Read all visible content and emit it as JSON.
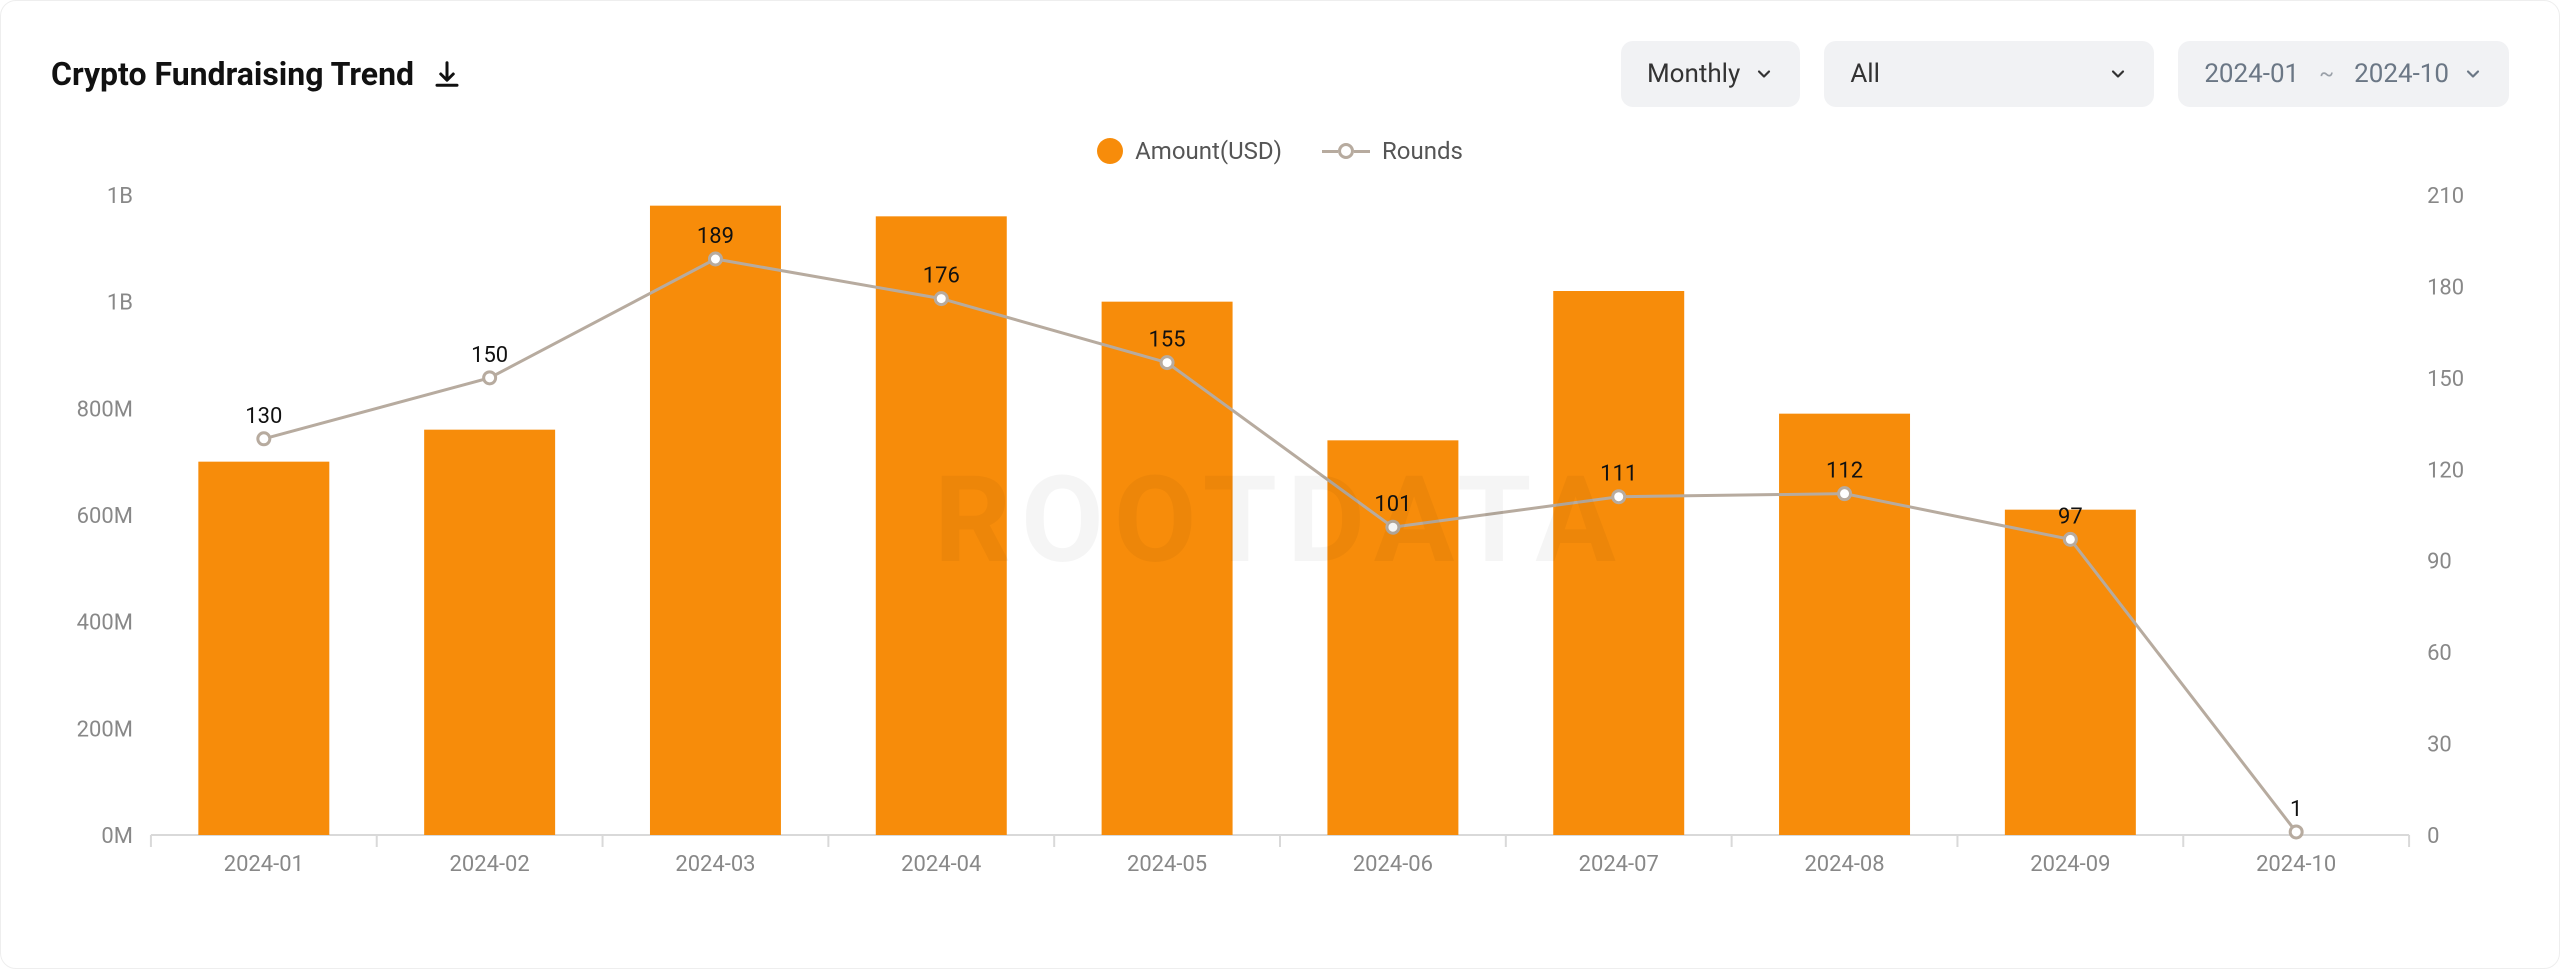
{
  "title": "Crypto Fundraising Trend",
  "controls": {
    "period_label": "Monthly",
    "category_label": "All",
    "range_from": "2024-01",
    "range_to": "2024-10",
    "range_sep": "~"
  },
  "legend": {
    "bar_label": "Amount(USD)",
    "line_label": "Rounds"
  },
  "chart": {
    "type": "bar+line",
    "categories": [
      "2024-01",
      "2024-02",
      "2024-03",
      "2024-04",
      "2024-05",
      "2024-06",
      "2024-07",
      "2024-08",
      "2024-09",
      "2024-10"
    ],
    "bar_series": {
      "name": "Amount(USD)",
      "values_millions": [
        700,
        760,
        1180,
        1160,
        1000,
        740,
        1020,
        790,
        610,
        0
      ],
      "color": "#f78c0a"
    },
    "line_series": {
      "name": "Rounds",
      "values": [
        130,
        150,
        189,
        176,
        155,
        101,
        111,
        112,
        97,
        1
      ],
      "line_color": "#b7ab9f",
      "marker_fill": "#ffffff",
      "marker_stroke": "#b7ab9f",
      "marker_radius": 6,
      "line_width": 3
    },
    "y_left": {
      "min": 0,
      "max": 1200,
      "ticks": [
        0,
        200,
        400,
        600,
        800,
        1000,
        1200
      ],
      "tick_labels": [
        "0M",
        "200M",
        "400M",
        "600M",
        "800M",
        "1B",
        "1B"
      ]
    },
    "y_right": {
      "min": 0,
      "max": 210,
      "ticks": [
        0,
        30,
        60,
        90,
        120,
        150,
        180,
        210
      ],
      "tick_labels": [
        "0",
        "30",
        "60",
        "90",
        "120",
        "150",
        "180",
        "210"
      ]
    },
    "bar_width_ratio": 0.58,
    "background_color": "#ffffff",
    "axis_color": "#d9d9d9",
    "tick_color": "#d9d9d9",
    "text_color": "#888888",
    "label_fontsize": 22
  },
  "watermark": "ROOTDATA"
}
